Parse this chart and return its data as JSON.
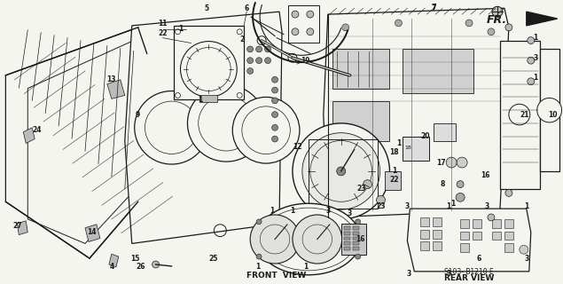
{
  "bg_color": "#f5f5f0",
  "dc": "#1a1a1a",
  "fig_width": 6.35,
  "fig_height": 3.2,
  "dpi": 100,
  "labels": {
    "front_view": "FRONT  VIEW",
    "rear_view": "REAR VIEW",
    "part_code": "S103- B1210 E",
    "fr_label": "FR."
  }
}
